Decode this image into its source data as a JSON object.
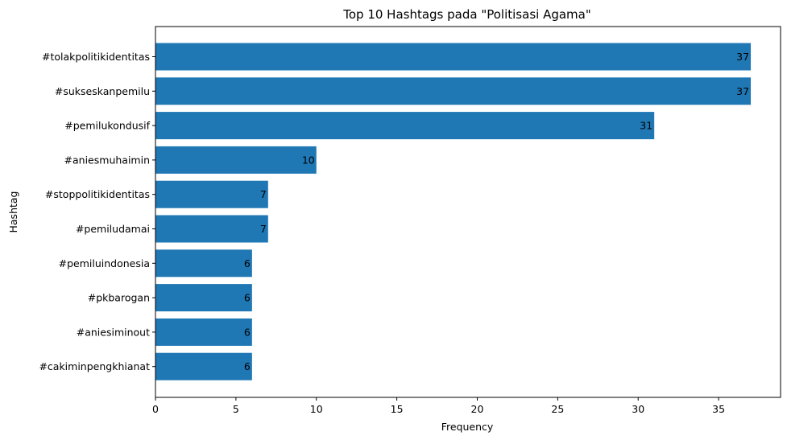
{
  "chart_data": {
    "type": "bar",
    "orientation": "horizontal",
    "title": "Top 10 Hashtags pada \"Politisasi Agama\"",
    "xlabel": "Frequency",
    "ylabel": "Hashtag",
    "categories": [
      "#tolakpolitikidentitas",
      "#sukseskanpemilu",
      "#pemilukondusif",
      "#aniesmuhaimin",
      "#stoppolitikidentitas",
      "#pemiludamai",
      "#pemiluindonesia",
      "#pkbarogan",
      "#aniesiminout",
      "#cakiminpengkhianat"
    ],
    "values": [
      37,
      37,
      31,
      10,
      7,
      7,
      6,
      6,
      6,
      6
    ],
    "xlim": [
      0,
      38.85
    ],
    "xticks": [
      0,
      5,
      10,
      15,
      20,
      25,
      30,
      35
    ],
    "bar_color": "#1f77b4",
    "grid": false,
    "legend": "none"
  }
}
